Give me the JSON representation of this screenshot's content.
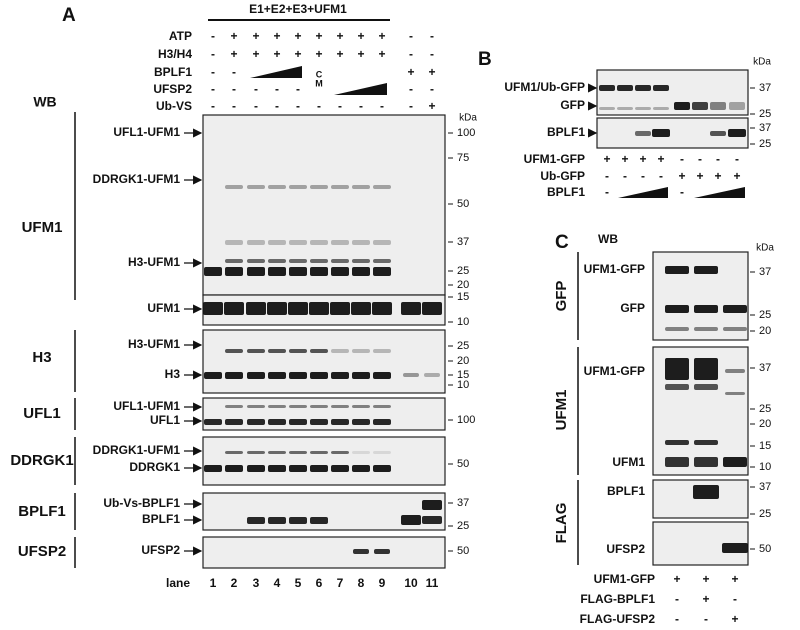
{
  "panel_a": {
    "label": "A",
    "header": "E1+E2+E3+UFM1",
    "wb": "WB",
    "kda_unit": "kDa",
    "conditions": [
      {
        "name": "ATP",
        "lanes": [
          "-",
          "+",
          "+",
          "+",
          "+",
          "+",
          "+",
          "+",
          "+",
          "-",
          "-"
        ]
      },
      {
        "name": "H3/H4",
        "lanes": [
          "-",
          "+",
          "+",
          "+",
          "+",
          "+",
          "+",
          "+",
          "+",
          "-",
          "-"
        ]
      },
      {
        "name": "BPLF1",
        "lanes": [
          "-",
          "-",
          null,
          null,
          null,
          "C",
          null,
          null,
          null,
          "+",
          "+"
        ]
      },
      {
        "name": "UFSP2",
        "lanes": [
          "-",
          "-",
          "-",
          "-",
          "-",
          "M",
          null,
          null,
          null,
          "-",
          "-"
        ]
      },
      {
        "name": "Ub-VS",
        "lanes": [
          "-",
          "-",
          "-",
          "-",
          "-",
          "-",
          "-",
          "-",
          "-",
          "-",
          "+"
        ]
      }
    ],
    "blots": [
      {
        "antibody": "UFM1",
        "bands": [
          "UFL1-UFM1",
          "DDRGK1-UFM1",
          "H3-UFM1",
          "UFM1"
        ],
        "kda": [
          100,
          75,
          50,
          37,
          25,
          20,
          15,
          10
        ]
      },
      {
        "antibody": "H3",
        "bands": [
          "H3-UFM1",
          "H3"
        ],
        "kda": [
          25,
          20,
          15,
          10
        ]
      },
      {
        "antibody": "UFL1",
        "bands": [
          "UFL1-UFM1",
          "UFL1"
        ],
        "kda": [
          100
        ]
      },
      {
        "antibody": "DDRGK1",
        "bands": [
          "DDRGK1-UFM1",
          "DDRGK1"
        ],
        "kda": [
          50
        ]
      },
      {
        "antibody": "BPLF1",
        "bands": [
          "Ub-Vs-BPLF1",
          "BPLF1"
        ],
        "kda": [
          37,
          25
        ]
      },
      {
        "antibody": "UFSP2",
        "bands": [
          "UFSP2"
        ],
        "kda": [
          50
        ]
      }
    ],
    "lane_label": "lane",
    "lanes": [
      1,
      2,
      3,
      4,
      5,
      6,
      7,
      8,
      9,
      10,
      11
    ]
  },
  "panel_b": {
    "label": "B",
    "kda_unit": "kDa",
    "blots": [
      {
        "bands": [
          "UFM1/Ub-GFP",
          "GFP"
        ],
        "kda": [
          37,
          25
        ]
      },
      {
        "bands": [
          "BPLF1"
        ],
        "kda": [
          37,
          25
        ]
      }
    ],
    "conditions": [
      {
        "name": "UFM1-GFP",
        "lanes": [
          "+",
          "+",
          "+",
          "+",
          "-",
          "-",
          "-",
          "-"
        ]
      },
      {
        "name": "Ub-GFP",
        "lanes": [
          "-",
          "-",
          "-",
          "-",
          "+",
          "+",
          "+",
          "+"
        ]
      },
      {
        "name": "BPLF1",
        "lanes": [
          "-",
          null,
          null,
          null,
          "-",
          null,
          null,
          null
        ]
      }
    ]
  },
  "panel_c": {
    "label": "C",
    "wb": "WB",
    "kda_unit": "kDa",
    "blots": [
      {
        "antibody": "GFP",
        "bands": [
          "UFM1-GFP",
          "GFP"
        ],
        "kda": [
          37,
          25,
          20
        ]
      },
      {
        "antibody": "UFM1",
        "bands": [
          "UFM1-GFP",
          "UFM1"
        ],
        "kda": [
          37,
          25,
          20,
          15,
          10
        ]
      },
      {
        "antibody": "FLAG",
        "bands": [
          "BPLF1"
        ],
        "kda": [
          37,
          25
        ]
      },
      {
        "bands": [
          "UFSP2"
        ],
        "kda": [
          50
        ]
      }
    ],
    "conditions": [
      {
        "name": "UFM1-GFP",
        "lanes": [
          "+",
          "+",
          "+"
        ]
      },
      {
        "name": "FLAG-BPLF1",
        "lanes": [
          "-",
          "+",
          "-"
        ]
      },
      {
        "name": "FLAG-UFSP2",
        "lanes": [
          "-",
          "-",
          "+"
        ]
      }
    ]
  }
}
